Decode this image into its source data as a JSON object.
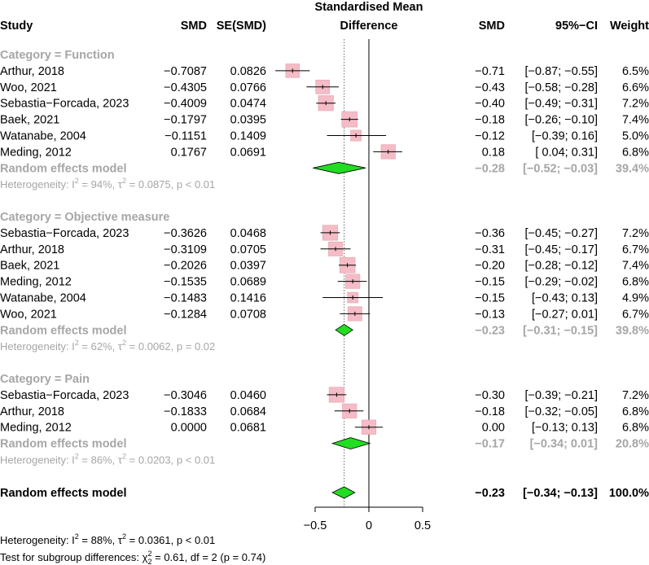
{
  "chart_data": {
    "type": "forest",
    "title": "Standardised Mean Difference",
    "columns": {
      "study": "Study",
      "smd": "SMD",
      "se": "SE(SMD)",
      "smd_right": "SMD",
      "ci": "95%−CI",
      "weight": "Weight"
    },
    "title_lines": [
      "Standardised Mean",
      "Difference"
    ],
    "x_axis": {
      "range": [
        -1.0,
        0.75
      ],
      "ticks": [
        -0.5,
        0,
        0.5
      ],
      "tick_labels": [
        "−0.5",
        "0",
        "0.5"
      ],
      "null_line": 0,
      "overall_line": -0.23
    },
    "subgroups": [
      {
        "label": "Category = Function",
        "studies": [
          {
            "study": "Arthur, 2018",
            "smd_text": "−0.7087",
            "se_text": "0.0826",
            "est": -0.71,
            "lower": -0.87,
            "upper": -0.55,
            "weight": 6.5,
            "est_text": "−0.71",
            "ci_text": "[−0.87; −0.55]",
            "weight_text": "6.5%"
          },
          {
            "study": "Woo, 2021",
            "smd_text": "−0.4305",
            "se_text": "0.0766",
            "est": -0.43,
            "lower": -0.58,
            "upper": -0.28,
            "weight": 6.6,
            "est_text": "−0.43",
            "ci_text": "[−0.58; −0.28]",
            "weight_text": "6.6%"
          },
          {
            "study": "Sebastia−Forcada, 2023",
            "smd_text": "−0.4009",
            "se_text": "0.0474",
            "est": -0.4,
            "lower": -0.49,
            "upper": -0.31,
            "weight": 7.2,
            "est_text": "−0.40",
            "ci_text": "[−0.49; −0.31]",
            "weight_text": "7.2%"
          },
          {
            "study": "Baek, 2021",
            "smd_text": "−0.1797",
            "se_text": "0.0395",
            "est": -0.18,
            "lower": -0.26,
            "upper": -0.1,
            "weight": 7.4,
            "est_text": "−0.18",
            "ci_text": "[−0.26; −0.10]",
            "weight_text": "7.4%"
          },
          {
            "study": "Watanabe, 2004",
            "smd_text": "−0.1151",
            "se_text": "0.1409",
            "est": -0.12,
            "lower": -0.39,
            "upper": 0.16,
            "weight": 5.0,
            "est_text": "−0.12",
            "ci_text": "[−0.39;  0.16]",
            "weight_text": "5.0%"
          },
          {
            "study": "Meding, 2012",
            "smd_text": "0.1767",
            "se_text": "0.0691",
            "est": 0.18,
            "lower": 0.04,
            "upper": 0.31,
            "weight": 6.8,
            "est_text": "0.18",
            "ci_text": "[ 0.04;  0.31]",
            "weight_text": "6.8%"
          }
        ],
        "model": {
          "label": "Random effects model",
          "est": -0.28,
          "lower": -0.52,
          "upper": -0.03,
          "est_text": "−0.28",
          "ci_text": "[−0.52; −0.03]",
          "weight_text": "39.4%"
        },
        "heterogeneity": {
          "prefix": "Heterogeneity: ",
          "I2": "94%",
          "tau2": "0.0875",
          "p": "< 0.01"
        }
      },
      {
        "label": "Category = Objective measure",
        "studies": [
          {
            "study": "Sebastia−Forcada, 2023",
            "smd_text": "−0.3626",
            "se_text": "0.0468",
            "est": -0.36,
            "lower": -0.45,
            "upper": -0.27,
            "weight": 7.2,
            "est_text": "−0.36",
            "ci_text": "[−0.45; −0.27]",
            "weight_text": "7.2%"
          },
          {
            "study": "Arthur, 2018",
            "smd_text": "−0.3109",
            "se_text": "0.0705",
            "est": -0.31,
            "lower": -0.45,
            "upper": -0.17,
            "weight": 6.7,
            "est_text": "−0.31",
            "ci_text": "[−0.45; −0.17]",
            "weight_text": "6.7%"
          },
          {
            "study": "Baek, 2021",
            "smd_text": "−0.2026",
            "se_text": "0.0397",
            "est": -0.2,
            "lower": -0.28,
            "upper": -0.12,
            "weight": 7.4,
            "est_text": "−0.20",
            "ci_text": "[−0.28; −0.12]",
            "weight_text": "7.4%"
          },
          {
            "study": "Meding, 2012",
            "smd_text": "−0.1535",
            "se_text": "0.0689",
            "est": -0.15,
            "lower": -0.29,
            "upper": -0.02,
            "weight": 6.8,
            "est_text": "−0.15",
            "ci_text": "[−0.29; −0.02]",
            "weight_text": "6.8%"
          },
          {
            "study": "Watanabe, 2004",
            "smd_text": "−0.1483",
            "se_text": "0.1416",
            "est": -0.15,
            "lower": -0.43,
            "upper": 0.13,
            "weight": 4.9,
            "est_text": "−0.15",
            "ci_text": "[−0.43;  0.13]",
            "weight_text": "4.9%"
          },
          {
            "study": "Woo, 2021",
            "smd_text": "−0.1284",
            "se_text": "0.0708",
            "est": -0.13,
            "lower": -0.27,
            "upper": 0.01,
            "weight": 6.7,
            "est_text": "−0.13",
            "ci_text": "[−0.27;  0.01]",
            "weight_text": "6.7%"
          }
        ],
        "model": {
          "label": "Random effects model",
          "est": -0.23,
          "lower": -0.31,
          "upper": -0.15,
          "est_text": "−0.23",
          "ci_text": "[−0.31; −0.15]",
          "weight_text": "39.8%"
        },
        "heterogeneity": {
          "prefix": "Heterogeneity: ",
          "I2": "62%",
          "tau2": "0.0062",
          "p": "= 0.02"
        }
      },
      {
        "label": "Category = Pain",
        "studies": [
          {
            "study": "Sebastia−Forcada, 2023",
            "smd_text": "−0.3046",
            "se_text": "0.0460",
            "est": -0.3,
            "lower": -0.39,
            "upper": -0.21,
            "weight": 7.2,
            "est_text": "−0.30",
            "ci_text": "[−0.39; −0.21]",
            "weight_text": "7.2%"
          },
          {
            "study": "Arthur, 2018",
            "smd_text": "−0.1833",
            "se_text": "0.0684",
            "est": -0.18,
            "lower": -0.32,
            "upper": -0.05,
            "weight": 6.8,
            "est_text": "−0.18",
            "ci_text": "[−0.32; −0.05]",
            "weight_text": "6.8%"
          },
          {
            "study": "Meding, 2012",
            "smd_text": "0.0000",
            "se_text": "0.0681",
            "est": 0.0,
            "lower": -0.13,
            "upper": 0.13,
            "weight": 6.8,
            "est_text": "0.00",
            "ci_text": "[−0.13;  0.13]",
            "weight_text": "6.8%"
          }
        ],
        "model": {
          "label": "Random effects model",
          "est": -0.17,
          "lower": -0.34,
          "upper": 0.01,
          "est_text": "−0.17",
          "ci_text": "[−0.34;  0.01]",
          "weight_text": "20.8%"
        },
        "heterogeneity": {
          "prefix": "Heterogeneity: ",
          "I2": "86%",
          "tau2": "0.0203",
          "p": "< 0.01"
        }
      }
    ],
    "overall": {
      "label": "Random effects model",
      "est": -0.23,
      "lower": -0.34,
      "upper": -0.13,
      "est_text": "−0.23",
      "ci_text": "[−0.34; −0.13]",
      "weight_text": "100.0%"
    },
    "footer": {
      "heterogeneity": {
        "prefix": "Heterogeneity: ",
        "I2": "88%",
        "tau2": "0.0361",
        "p": "< 0.01"
      },
      "subgroup_test": {
        "prefix": "Test for subgroup differences: ",
        "chi2": "0.61",
        "df_text": ", df = 2 (",
        "p_text": " = 0.74)"
      }
    },
    "colors": {
      "square_fill": "#f4bcc6",
      "square_stroke": "#e6a3b0",
      "diamond_fill": "#22dd22",
      "diamond_stroke": "#000000",
      "model_text": "#a6a6a6"
    }
  }
}
